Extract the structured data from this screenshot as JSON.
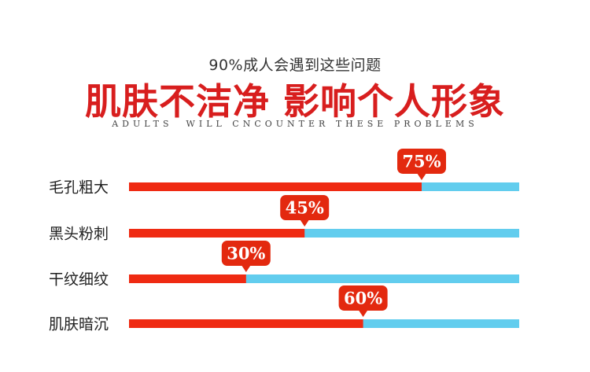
{
  "header": {
    "subtitle": "90%成人会遇到这些问题",
    "title": "肌肤不洁净 影响个人形象",
    "english": "ADULTS  WILL CNCOUNTER THESE PROBLEMS"
  },
  "colors": {
    "fill": "#ef2a12",
    "track": "#62cdee",
    "badge": "#e3290f",
    "title": "#d81e1e"
  },
  "chart_data": {
    "type": "bar",
    "orientation": "horizontal",
    "categories": [
      "毛孔粗大",
      "黑头粉刺",
      "干纹细纹",
      "肌肤暗沉"
    ],
    "values": [
      75,
      45,
      30,
      60
    ],
    "value_labels": [
      "75%",
      "45%",
      "30%",
      "60%"
    ],
    "xlim": [
      0,
      100
    ],
    "unit": "%"
  }
}
